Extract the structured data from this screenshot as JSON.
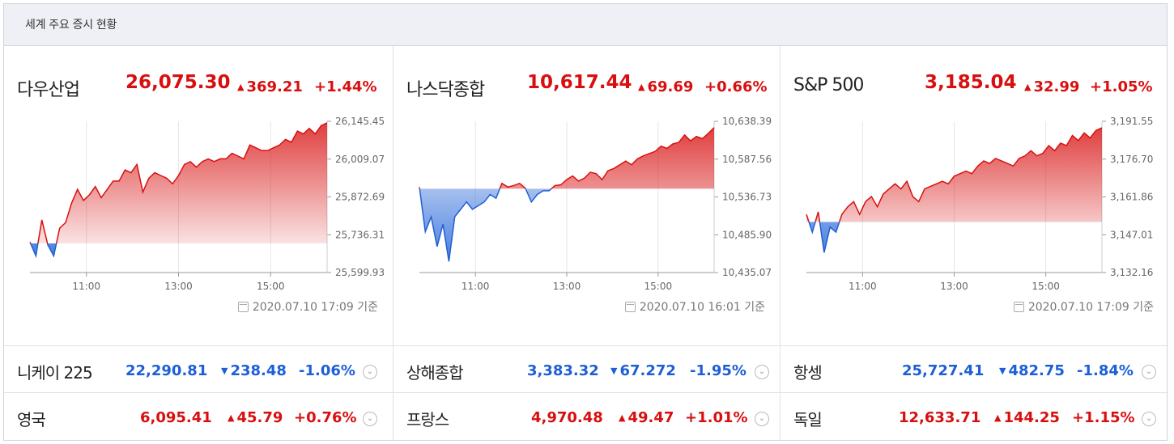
{
  "title": "세계 주요 증시 현황",
  "colors": {
    "up": "#d80f0f",
    "down": "#1d5fd6"
  },
  "charts": [
    {
      "name": "다우산업",
      "value": "26,075.30",
      "change": "369.21",
      "pct": "+1.44%",
      "dir": "up",
      "yticks": [
        "26,145.45",
        "26,009.07",
        "25,872.69",
        "25,736.31",
        "25,599.93"
      ],
      "xticks": [
        "11:00",
        "13:00",
        "15:00"
      ],
      "date": "2020.07.10 17:09 기준",
      "chart_data": {
        "type": "line",
        "ylim": [
          25599.93,
          26145.45
        ],
        "baseline": 25705.0,
        "x": [
          0,
          0.02,
          0.04,
          0.06,
          0.08,
          0.1,
          0.12,
          0.14,
          0.16,
          0.18,
          0.2,
          0.22,
          0.24,
          0.26,
          0.28,
          0.3,
          0.32,
          0.34,
          0.36,
          0.38,
          0.4,
          0.42,
          0.44,
          0.46,
          0.48,
          0.5,
          0.52,
          0.54,
          0.56,
          0.58,
          0.6,
          0.62,
          0.64,
          0.66,
          0.68,
          0.7,
          0.72,
          0.74,
          0.76,
          0.78,
          0.8,
          0.82,
          0.84,
          0.86,
          0.88,
          0.9,
          0.92,
          0.94,
          0.96,
          0.98,
          1.0
        ],
        "y": [
          25710,
          25660,
          25790,
          25700,
          25660,
          25760,
          25780,
          25850,
          25900,
          25860,
          25880,
          25910,
          25870,
          25900,
          25930,
          25930,
          25970,
          25960,
          25990,
          25890,
          25940,
          25960,
          25950,
          25940,
          25920,
          25950,
          25990,
          26000,
          25980,
          26000,
          26010,
          26000,
          26010,
          26010,
          26030,
          26020,
          26010,
          26060,
          26050,
          26040,
          26040,
          26050,
          26060,
          26080,
          26070,
          26110,
          26100,
          26120,
          26100,
          26130,
          26140
        ]
      }
    },
    {
      "name": "나스닥종합",
      "value": "10,617.44",
      "change": "69.69",
      "pct": "+0.66%",
      "dir": "up",
      "yticks": [
        "10,638.39",
        "10,587.56",
        "10,536.73",
        "10,485.90",
        "10,435.07"
      ],
      "xticks": [
        "11:00",
        "13:00",
        "15:00"
      ],
      "date": "2020.07.10 16:01 기준",
      "chart_data": {
        "type": "line",
        "ylim": [
          10435.07,
          10638.39
        ],
        "baseline": 10547.75,
        "x": [
          0,
          0.02,
          0.04,
          0.06,
          0.08,
          0.1,
          0.12,
          0.14,
          0.16,
          0.18,
          0.2,
          0.22,
          0.24,
          0.26,
          0.28,
          0.3,
          0.32,
          0.34,
          0.36,
          0.38,
          0.4,
          0.42,
          0.44,
          0.46,
          0.48,
          0.5,
          0.52,
          0.54,
          0.56,
          0.58,
          0.6,
          0.62,
          0.64,
          0.66,
          0.68,
          0.7,
          0.72,
          0.74,
          0.76,
          0.78,
          0.8,
          0.82,
          0.84,
          0.86,
          0.88,
          0.9,
          0.92,
          0.94,
          0.96,
          0.98,
          1.0
        ],
        "y": [
          10550,
          10490,
          10510,
          10470,
          10500,
          10450,
          10510,
          10520,
          10530,
          10520,
          10525,
          10530,
          10540,
          10535,
          10555,
          10550,
          10552,
          10555,
          10548,
          10530,
          10540,
          10545,
          10545,
          10552,
          10553,
          10560,
          10565,
          10558,
          10562,
          10570,
          10568,
          10560,
          10572,
          10575,
          10580,
          10585,
          10580,
          10588,
          10592,
          10595,
          10598,
          10605,
          10602,
          10608,
          10610,
          10620,
          10612,
          10618,
          10615,
          10622,
          10630
        ]
      }
    },
    {
      "name": "S&P 500",
      "value": "3,185.04",
      "change": "32.99",
      "pct": "+1.05%",
      "dir": "up",
      "yticks": [
        "3,191.55",
        "3,176.70",
        "3,161.86",
        "3,147.01",
        "3,132.16"
      ],
      "xticks": [
        "11:00",
        "13:00",
        "15:00"
      ],
      "date": "2020.07.10 17:09 기준",
      "chart_data": {
        "type": "line",
        "ylim": [
          3132.16,
          3191.55
        ],
        "baseline": 3152.05,
        "x": [
          0,
          0.02,
          0.04,
          0.06,
          0.08,
          0.1,
          0.12,
          0.14,
          0.16,
          0.18,
          0.2,
          0.22,
          0.24,
          0.26,
          0.28,
          0.3,
          0.32,
          0.34,
          0.36,
          0.38,
          0.4,
          0.42,
          0.44,
          0.46,
          0.48,
          0.5,
          0.52,
          0.54,
          0.56,
          0.58,
          0.6,
          0.62,
          0.64,
          0.66,
          0.68,
          0.7,
          0.72,
          0.74,
          0.76,
          0.78,
          0.8,
          0.82,
          0.84,
          0.86,
          0.88,
          0.9,
          0.92,
          0.94,
          0.96,
          0.98,
          1.0
        ],
        "y": [
          3155,
          3148,
          3156,
          3140,
          3150,
          3148,
          3155,
          3158,
          3160,
          3155,
          3160,
          3162,
          3158,
          3163,
          3165,
          3167,
          3165,
          3168,
          3162,
          3160,
          3165,
          3166,
          3167,
          3168,
          3167,
          3170,
          3171,
          3172,
          3171,
          3174,
          3176,
          3175,
          3177,
          3176,
          3175,
          3174,
          3177,
          3178,
          3180,
          3178,
          3179,
          3182,
          3180,
          3183,
          3182,
          3186,
          3184,
          3187,
          3185,
          3188,
          3189
        ]
      }
    }
  ],
  "rows": [
    [
      {
        "name": "니케이 225",
        "value": "22,290.81",
        "change": "238.48",
        "pct": "-1.06%",
        "dir": "down"
      },
      {
        "name": "상해종합",
        "value": "3,383.32",
        "change": "67.272",
        "pct": "-1.95%",
        "dir": "down"
      },
      {
        "name": "항셍",
        "value": "25,727.41",
        "change": "482.75",
        "pct": "-1.84%",
        "dir": "down"
      }
    ],
    [
      {
        "name": "영국",
        "value": "6,095.41",
        "change": "45.79",
        "pct": "+0.76%",
        "dir": "up"
      },
      {
        "name": "프랑스",
        "value": "4,970.48",
        "change": "49.47",
        "pct": "+1.01%",
        "dir": "up"
      },
      {
        "name": "독일",
        "value": "12,633.71",
        "change": "144.25",
        "pct": "+1.15%",
        "dir": "up"
      }
    ]
  ],
  "glyphs": {
    "up": "▲",
    "down": "▼",
    "expand": "⌄"
  }
}
